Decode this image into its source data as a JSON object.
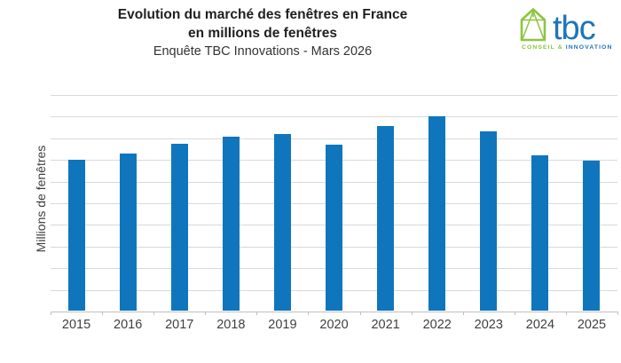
{
  "header": {
    "title_line1": "Evolution du marché des fenêtres en France",
    "title_line2": "en millions de fenêtres",
    "subtitle": "Enquête TBC Innovations - Mars 2026"
  },
  "logo": {
    "brand": "tbc",
    "tagline_left": "CONSEIL &",
    "tagline_right": "INNOVATION",
    "green": "#8cc540",
    "blue": "#1c75bc"
  },
  "chart_data": {
    "type": "bar",
    "title": "Evolution du marché des fenêtres en France en millions de fenêtres",
    "subtitle": "Enquête TBC Innovations - Mars 2026",
    "categories": [
      "2015",
      "2016",
      "2017",
      "2018",
      "2019",
      "2020",
      "2021",
      "2022",
      "2023",
      "2024",
      "2025"
    ],
    "values": [
      7.0,
      7.3,
      7.75,
      8.05,
      8.2,
      7.7,
      8.55,
      9.0,
      8.3,
      7.2,
      6.95
    ],
    "xlabel": "",
    "ylabel": "Millions de fenêtres",
    "ylim": [
      0,
      10
    ],
    "grid_step": 1,
    "grid": true,
    "y_tick_labels_shown": false,
    "legend": false,
    "legend_position": "none",
    "bar_color": "#0f76bd",
    "gridline_color": "#d9d9d9",
    "axis_color": "#c0c0c0",
    "label_color": "#3f3f3f"
  }
}
